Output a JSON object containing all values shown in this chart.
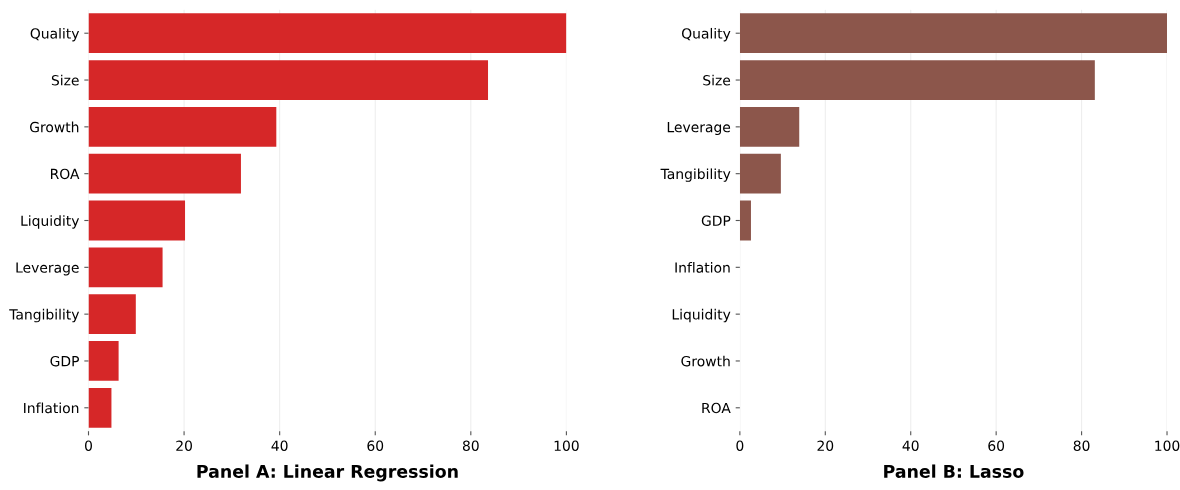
{
  "chart_data": [
    {
      "type": "bar",
      "orientation": "horizontal",
      "title": "Panel A: Linear Regression",
      "categories": [
        "Quality",
        "Size",
        "Growth",
        "ROA",
        "Liquidity",
        "Leverage",
        "Tangibility",
        "GDP",
        "Inflation"
      ],
      "values": [
        100,
        83.6,
        39.3,
        31.9,
        20.2,
        15.5,
        9.9,
        6.3,
        4.8
      ],
      "color": "#d62728",
      "xlim": [
        0,
        100
      ],
      "xticks": [
        0,
        20,
        40,
        60,
        80,
        100
      ],
      "grid": "x"
    },
    {
      "type": "bar",
      "orientation": "horizontal",
      "title": "Panel B: Lasso",
      "categories": [
        "Quality",
        "Size",
        "Leverage",
        "Tangibility",
        "GDP",
        "Inflation",
        "Liquidity",
        "Growth",
        "ROA"
      ],
      "values": [
        100,
        83.1,
        13.9,
        9.6,
        2.6,
        0,
        0,
        0,
        0
      ],
      "color": "#8c564b",
      "xlim": [
        0,
        100
      ],
      "xticks": [
        0,
        20,
        40,
        60,
        80,
        100
      ],
      "grid": "x"
    }
  ]
}
